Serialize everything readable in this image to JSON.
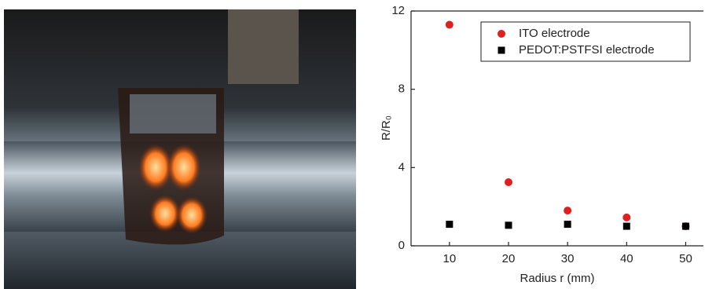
{
  "chart_data": {
    "type": "scatter",
    "xlabel": "Radius r (mm)",
    "ylabel": "R/R₀",
    "xlim": [
      3.5,
      53
    ],
    "ylim": [
      0,
      12
    ],
    "xticks": [
      10,
      20,
      30,
      40,
      50
    ],
    "yticks": [
      0,
      4,
      8,
      12
    ],
    "legend": "upper right",
    "series": [
      {
        "name": "ITO electrode",
        "color": "#e02020",
        "marker": "circle",
        "x": [
          10,
          20,
          30,
          40,
          50
        ],
        "values": [
          11.3,
          3.25,
          1.8,
          1.45,
          1.0
        ]
      },
      {
        "name": "PEDOT:PSTFSI electrode",
        "color": "#000000",
        "marker": "square",
        "x": [
          10,
          20,
          30,
          40,
          50
        ],
        "values": [
          1.1,
          1.05,
          1.1,
          1.0,
          1.0
        ]
      }
    ]
  }
}
